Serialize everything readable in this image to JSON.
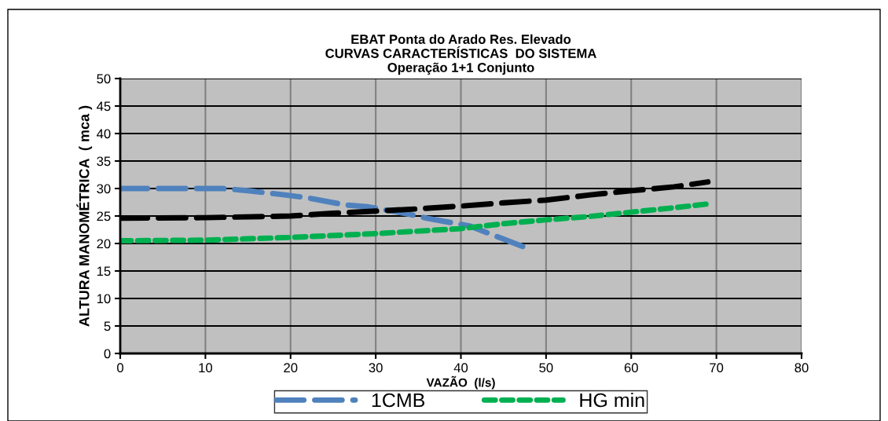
{
  "chart_data": {
    "type": "line",
    "title": "EBAT Ponta do Arado Res. Elevado\nCURVAS CARACTERÍSTICAS  DO SISTEMA\nOperação 1+1 Conjunto",
    "xlabel": "VAZÃO  (l/s)",
    "ylabel": "ALTURA MANOMÉTRICA  ( mca )",
    "xlim": [
      0,
      80
    ],
    "xticks": [
      0,
      10,
      20,
      30,
      40,
      50,
      60,
      70,
      80
    ],
    "ylim": [
      0,
      50
    ],
    "yticks": [
      0,
      5,
      10,
      15,
      20,
      25,
      30,
      35,
      40,
      45,
      50
    ],
    "grid": true,
    "legend": "bottom",
    "marker": "none",
    "series": [
      {
        "name": "1CMB",
        "color": "#4f81bd",
        "line_style": "dashed",
        "x": [
          0,
          12,
          15,
          19.5,
          22,
          26.5,
          29,
          34,
          36,
          41,
          43,
          48
        ],
        "values": [
          30,
          30,
          29.6,
          28.8,
          28.3,
          27,
          26.7,
          25.3,
          24.6,
          23.2,
          22,
          19
        ]
      },
      {
        "color": "#000000",
        "line_style": "dashed",
        "x": [
          0,
          10,
          20,
          25,
          30,
          35,
          40,
          45,
          50,
          55,
          60,
          65,
          69
        ],
        "values": [
          24.6,
          24.7,
          25,
          25.5,
          25.9,
          26.3,
          26.8,
          27.4,
          27.9,
          28.8,
          29.6,
          30.3,
          31.2
        ]
      },
      {
        "name": "HG min",
        "color": "#00b050",
        "line_style": "dotted",
        "x": [
          0,
          10,
          20,
          30,
          40,
          45,
          50,
          55,
          60,
          65,
          69
        ],
        "values": [
          20.5,
          20.6,
          21.1,
          21.8,
          22.7,
          23.6,
          24.3,
          24.9,
          25.7,
          26.5,
          27.2
        ]
      }
    ]
  }
}
